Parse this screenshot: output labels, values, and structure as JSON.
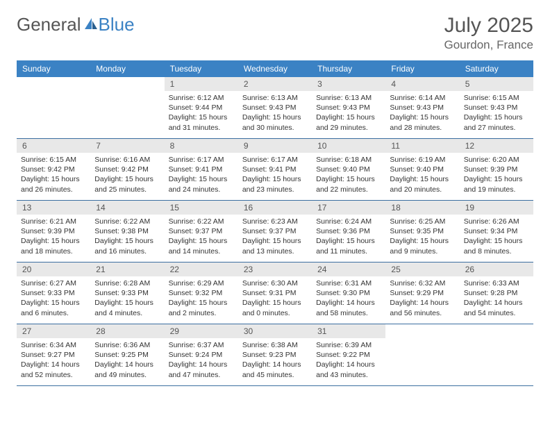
{
  "logo": {
    "text1": "General",
    "text2": "Blue"
  },
  "title": "July 2025",
  "location": "Gourdon, France",
  "dayHeaders": [
    "Sunday",
    "Monday",
    "Tuesday",
    "Wednesday",
    "Thursday",
    "Friday",
    "Saturday"
  ],
  "colors": {
    "headerBg": "#3b82c4",
    "headerText": "#ffffff",
    "dayNumBg": "#e8e8e8",
    "borderColor": "#3b6ea0",
    "textColor": "#333333",
    "titleColor": "#555555"
  },
  "startOffset": 2,
  "days": [
    {
      "n": "1",
      "sr": "6:12 AM",
      "ss": "9:44 PM",
      "dl": "15 hours and 31 minutes."
    },
    {
      "n": "2",
      "sr": "6:13 AM",
      "ss": "9:43 PM",
      "dl": "15 hours and 30 minutes."
    },
    {
      "n": "3",
      "sr": "6:13 AM",
      "ss": "9:43 PM",
      "dl": "15 hours and 29 minutes."
    },
    {
      "n": "4",
      "sr": "6:14 AM",
      "ss": "9:43 PM",
      "dl": "15 hours and 28 minutes."
    },
    {
      "n": "5",
      "sr": "6:15 AM",
      "ss": "9:43 PM",
      "dl": "15 hours and 27 minutes."
    },
    {
      "n": "6",
      "sr": "6:15 AM",
      "ss": "9:42 PM",
      "dl": "15 hours and 26 minutes."
    },
    {
      "n": "7",
      "sr": "6:16 AM",
      "ss": "9:42 PM",
      "dl": "15 hours and 25 minutes."
    },
    {
      "n": "8",
      "sr": "6:17 AM",
      "ss": "9:41 PM",
      "dl": "15 hours and 24 minutes."
    },
    {
      "n": "9",
      "sr": "6:17 AM",
      "ss": "9:41 PM",
      "dl": "15 hours and 23 minutes."
    },
    {
      "n": "10",
      "sr": "6:18 AM",
      "ss": "9:40 PM",
      "dl": "15 hours and 22 minutes."
    },
    {
      "n": "11",
      "sr": "6:19 AM",
      "ss": "9:40 PM",
      "dl": "15 hours and 20 minutes."
    },
    {
      "n": "12",
      "sr": "6:20 AM",
      "ss": "9:39 PM",
      "dl": "15 hours and 19 minutes."
    },
    {
      "n": "13",
      "sr": "6:21 AM",
      "ss": "9:39 PM",
      "dl": "15 hours and 18 minutes."
    },
    {
      "n": "14",
      "sr": "6:22 AM",
      "ss": "9:38 PM",
      "dl": "15 hours and 16 minutes."
    },
    {
      "n": "15",
      "sr": "6:22 AM",
      "ss": "9:37 PM",
      "dl": "15 hours and 14 minutes."
    },
    {
      "n": "16",
      "sr": "6:23 AM",
      "ss": "9:37 PM",
      "dl": "15 hours and 13 minutes."
    },
    {
      "n": "17",
      "sr": "6:24 AM",
      "ss": "9:36 PM",
      "dl": "15 hours and 11 minutes."
    },
    {
      "n": "18",
      "sr": "6:25 AM",
      "ss": "9:35 PM",
      "dl": "15 hours and 9 minutes."
    },
    {
      "n": "19",
      "sr": "6:26 AM",
      "ss": "9:34 PM",
      "dl": "15 hours and 8 minutes."
    },
    {
      "n": "20",
      "sr": "6:27 AM",
      "ss": "9:33 PM",
      "dl": "15 hours and 6 minutes."
    },
    {
      "n": "21",
      "sr": "6:28 AM",
      "ss": "9:33 PM",
      "dl": "15 hours and 4 minutes."
    },
    {
      "n": "22",
      "sr": "6:29 AM",
      "ss": "9:32 PM",
      "dl": "15 hours and 2 minutes."
    },
    {
      "n": "23",
      "sr": "6:30 AM",
      "ss": "9:31 PM",
      "dl": "15 hours and 0 minutes."
    },
    {
      "n": "24",
      "sr": "6:31 AM",
      "ss": "9:30 PM",
      "dl": "14 hours and 58 minutes."
    },
    {
      "n": "25",
      "sr": "6:32 AM",
      "ss": "9:29 PM",
      "dl": "14 hours and 56 minutes."
    },
    {
      "n": "26",
      "sr": "6:33 AM",
      "ss": "9:28 PM",
      "dl": "14 hours and 54 minutes."
    },
    {
      "n": "27",
      "sr": "6:34 AM",
      "ss": "9:27 PM",
      "dl": "14 hours and 52 minutes."
    },
    {
      "n": "28",
      "sr": "6:36 AM",
      "ss": "9:25 PM",
      "dl": "14 hours and 49 minutes."
    },
    {
      "n": "29",
      "sr": "6:37 AM",
      "ss": "9:24 PM",
      "dl": "14 hours and 47 minutes."
    },
    {
      "n": "30",
      "sr": "6:38 AM",
      "ss": "9:23 PM",
      "dl": "14 hours and 45 minutes."
    },
    {
      "n": "31",
      "sr": "6:39 AM",
      "ss": "9:22 PM",
      "dl": "14 hours and 43 minutes."
    }
  ],
  "labels": {
    "sunrise": "Sunrise:",
    "sunset": "Sunset:",
    "daylight": "Daylight:"
  }
}
